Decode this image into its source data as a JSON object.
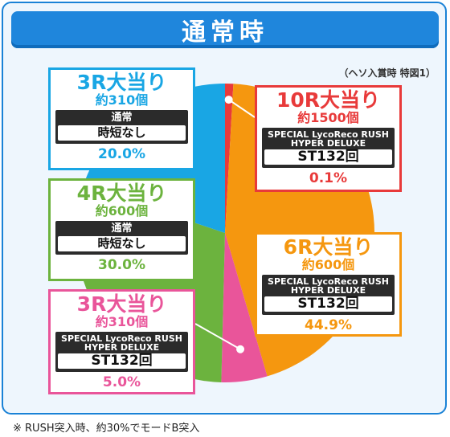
{
  "header": {
    "title": "通常時"
  },
  "subtitle": "（ヘソ入賞時 特図1）",
  "footnote": "※ RUSH突入時、約30%でモードB突入",
  "chart_data": {
    "type": "pie",
    "title": "通常時",
    "subtitle": "（ヘソ入賞時 特図1）",
    "slices": [
      {
        "label": "10R大当り",
        "balls": "約1500個",
        "mode_top": "SPECIAL LycoReco RUSH HYPER DELUXE",
        "mode_bottom": "ST132回",
        "percent_text": "0.1%",
        "value": 0.1,
        "color": "#e83a3a"
      },
      {
        "label": "6R大当り",
        "balls": "約600個",
        "mode_top": "SPECIAL LycoReco RUSH HYPER DELUXE",
        "mode_bottom": "ST132回",
        "percent_text": "44.9%",
        "value": 44.9,
        "color": "#f5970f"
      },
      {
        "label": "3R大当り",
        "balls": "約310個",
        "mode_top": "SPECIAL LycoReco RUSH HYPER DELUXE",
        "mode_bottom": "ST132回",
        "percent_text": "5.0%",
        "value": 5.0,
        "color": "#e9559a"
      },
      {
        "label": "4R大当り",
        "balls": "約600個",
        "mode_top": "通常",
        "mode_bottom": "時短なし",
        "percent_text": "30.0%",
        "value": 30.0,
        "color": "#6cb33e"
      },
      {
        "label": "3R大当り",
        "balls": "約310個",
        "mode_top": "通常",
        "mode_bottom": "時短なし",
        "percent_text": "20.0%",
        "value": 20.0,
        "color": "#19a6e4"
      }
    ]
  }
}
